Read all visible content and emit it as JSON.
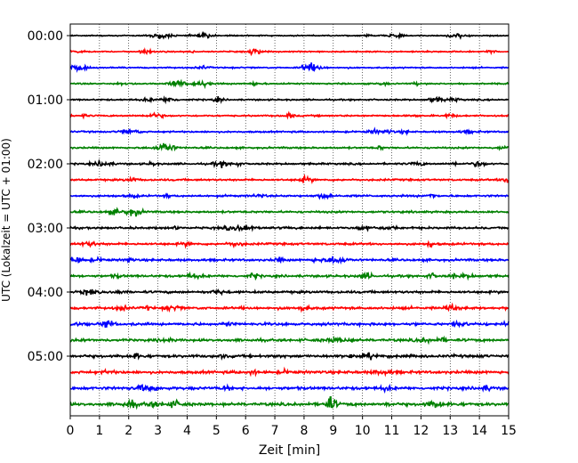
{
  "chart_data": {
    "type": "line",
    "title": "",
    "xlabel": "Zeit  [min]",
    "ylabel": "UTC (Lokalzeit = UTC + 01:00)",
    "xlim": [
      0,
      15
    ],
    "x_ticks": [
      "0",
      "1",
      "2",
      "3",
      "4",
      "5",
      "6",
      "7",
      "8",
      "9",
      "10",
      "11",
      "12",
      "13",
      "14",
      "15"
    ],
    "y_tick_labels": [
      "00:00",
      "01:00",
      "02:00",
      "03:00",
      "04:00",
      "05:00"
    ],
    "trace_interval_minutes": 15,
    "trace_count": 24,
    "grid": "vertical dotted lines at each minute",
    "trace_colors": [
      "#000000",
      "#ff0000",
      "#0000ff",
      "#008000"
    ],
    "notable_events": [
      {
        "trace_start": "05:45",
        "minute": 8.9,
        "description": "large burst"
      }
    ]
  }
}
